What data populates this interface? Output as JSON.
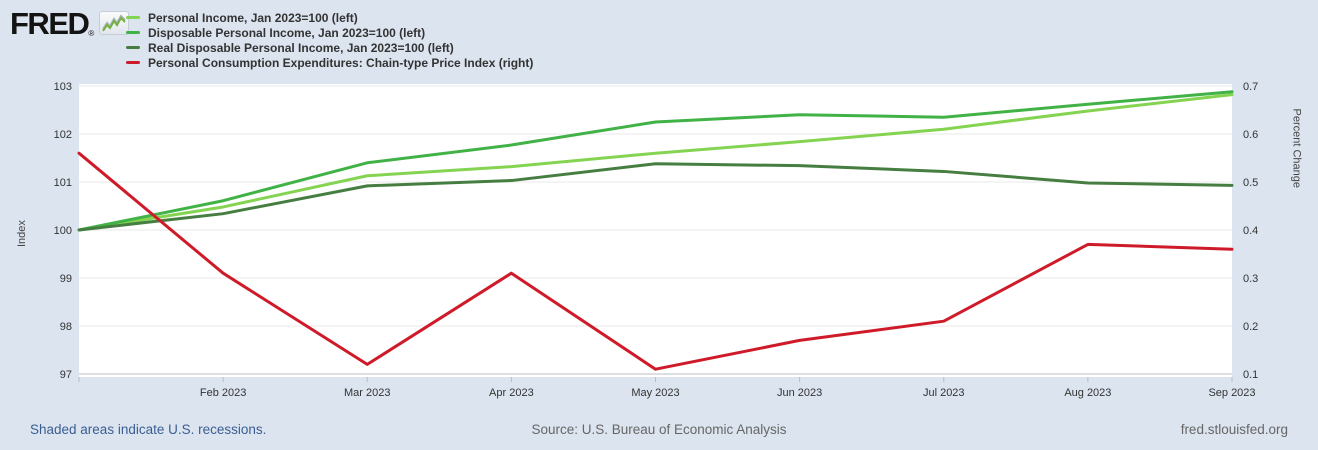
{
  "page": {
    "background_color": "#dce4ef",
    "plot_background_color": "#ffffff",
    "gridline_color": "#e9e9e9",
    "axis_line_color": "#b9bdc4"
  },
  "header": {
    "logo": "FRED",
    "registered": "®"
  },
  "legend": {
    "items": [
      {
        "label": "Personal Income, Jan 2023=100 (left)",
        "color": "#84d452"
      },
      {
        "label": "Disposable Personal Income, Jan 2023=100 (left)",
        "color": "#41b246"
      },
      {
        "label": "Real Disposable Personal Income, Jan 2023=100 (left)",
        "color": "#467e42"
      },
      {
        "label": "Personal Consumption Expenditures: Chain-type Price Index (right)",
        "color": "#cf1b29"
      }
    ]
  },
  "chart_data": {
    "type": "line",
    "x": [
      "Jan 2023",
      "Feb 2023",
      "Mar 2023",
      "Apr 2023",
      "May 2023",
      "Jun 2023",
      "Jul 2023",
      "Aug 2023",
      "Sep 2023"
    ],
    "x_tick_labels": [
      "Feb 2023",
      "Mar 2023",
      "Apr 2023",
      "May 2023",
      "Jun 2023",
      "Jul 2023",
      "Aug 2023",
      "Sep 2023"
    ],
    "left_axis": {
      "label": "Index",
      "min": 97,
      "max": 103,
      "ticks": [
        97,
        98,
        99,
        100,
        101,
        102,
        103
      ]
    },
    "right_axis": {
      "label": "Percent Change",
      "min": 0.1,
      "max": 0.7,
      "ticks": [
        0.1,
        0.2,
        0.3,
        0.4,
        0.5,
        0.6,
        0.7
      ]
    },
    "grid": "horizontal-only",
    "legend_position": "top-left",
    "series": [
      {
        "id": "personal-income",
        "name": "Personal Income, Jan 2023=100",
        "axis": "left",
        "color": "#84d452",
        "values": [
          100,
          100.48,
          101.13,
          101.32,
          101.6,
          101.84,
          102.1,
          102.48,
          102.82
        ]
      },
      {
        "id": "disposable-personal-income",
        "name": "Disposable Personal Income, Jan 2023=100",
        "axis": "left",
        "color": "#41b246",
        "values": [
          100,
          100.61,
          101.4,
          101.77,
          102.25,
          102.4,
          102.35,
          102.62,
          102.88
        ]
      },
      {
        "id": "real-disposable-personal-income",
        "name": "Real Disposable Personal Income, Jan 2023=100",
        "axis": "left",
        "color": "#467e42",
        "values": [
          100,
          100.34,
          100.92,
          101.03,
          101.38,
          101.34,
          101.22,
          100.98,
          100.93
        ]
      },
      {
        "id": "pce-chain-type-price-index",
        "name": "Personal Consumption Expenditures: Chain-type Price Index",
        "axis": "right",
        "color": "#cf1b29",
        "values": [
          0.56,
          0.31,
          0.12,
          0.31,
          0.11,
          0.17,
          0.21,
          0.37,
          0.36
        ]
      }
    ]
  },
  "footer": {
    "recession_note": "Shaded areas indicate U.S. recessions.",
    "source": "Source: U.S. Bureau of Economic Analysis",
    "site": "fred.stlouisfed.org"
  }
}
